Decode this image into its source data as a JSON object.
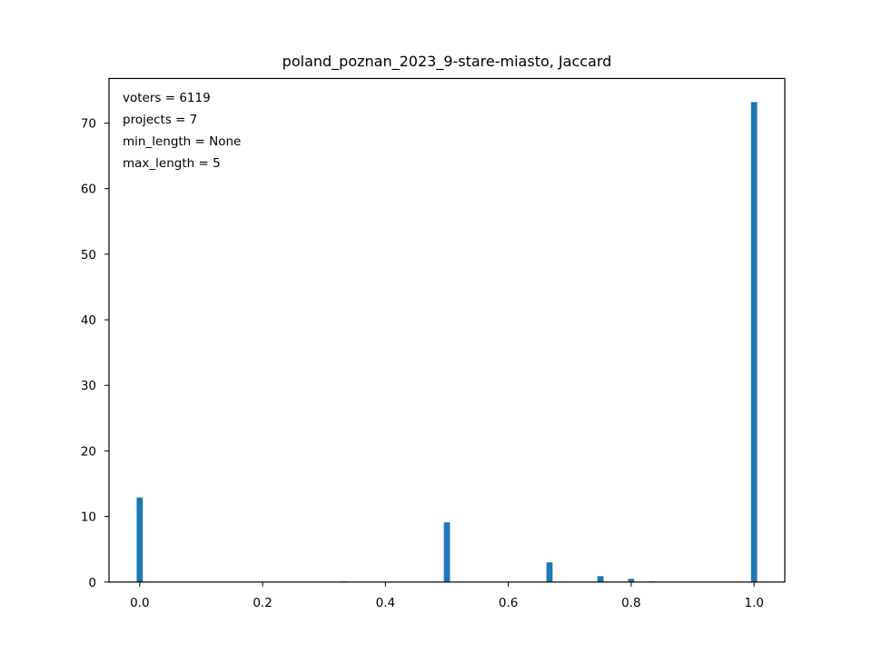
{
  "chart_data": {
    "type": "bar",
    "title": "poland_poznan_2023_9-stare-miasto, Jaccard",
    "xlabel": "",
    "ylabel": "",
    "xlim": [
      -0.05,
      1.05
    ],
    "ylim": [
      0,
      76.8
    ],
    "bar_width": 0.01,
    "bar_color": "#1f77b4",
    "grid": false,
    "x_ticks": [
      0.0,
      0.2,
      0.4,
      0.6,
      0.8,
      1.0
    ],
    "x_tick_labels": [
      "0.0",
      "0.2",
      "0.4",
      "0.6",
      "0.8",
      "1.0"
    ],
    "y_ticks": [
      0,
      10,
      20,
      30,
      40,
      50,
      60,
      70
    ],
    "y_tick_labels": [
      "0",
      "10",
      "20",
      "30",
      "40",
      "50",
      "60",
      "70"
    ],
    "bars": [
      {
        "x": 0.0,
        "value": 12.9
      },
      {
        "x": 0.333,
        "value": 0.1
      },
      {
        "x": 0.5,
        "value": 9.1
      },
      {
        "x": 0.667,
        "value": 3.0
      },
      {
        "x": 0.75,
        "value": 0.9
      },
      {
        "x": 0.8,
        "value": 0.5
      },
      {
        "x": 0.833,
        "value": 0.1
      },
      {
        "x": 1.0,
        "value": 73.2
      }
    ],
    "annotations": [
      "voters = 6119",
      "projects = 7",
      "min_length = None",
      "max_length = 5"
    ]
  }
}
